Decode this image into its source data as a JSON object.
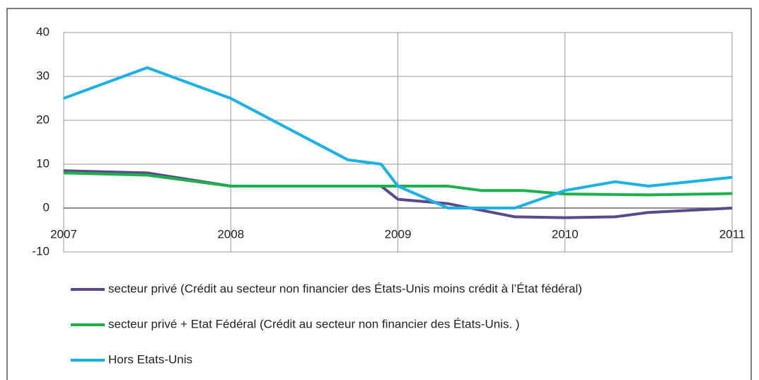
{
  "chart_data": {
    "type": "line",
    "xlim": [
      2007,
      2011
    ],
    "xticks": [
      2007,
      2008,
      2009,
      2010,
      2011
    ],
    "ylim": [
      -10,
      40
    ],
    "yticks": [
      -10,
      0,
      10,
      20,
      30,
      40
    ],
    "grid": true,
    "legend": "bottom",
    "series": [
      {
        "name": "secteur privé (Crédit au secteur non financier des États-Unis moins crédit à l’État fédéral)",
        "color": "#5b4a8b",
        "x": [
          2007,
          2007.5,
          2008,
          2008.9,
          2009,
          2009.3,
          2009.7,
          2010,
          2010.3,
          2010.5,
          2011
        ],
        "values": [
          8.5,
          8,
          5,
          5,
          2,
          1,
          -2,
          -2.2,
          -2,
          -1,
          0
        ]
      },
      {
        "name": "secteur privé + Etat Fédéral (Crédit au secteur non financier des États-Unis. )",
        "color": "#1db14b",
        "x": [
          2007,
          2007.5,
          2008,
          2009.3,
          2009.5,
          2009.75,
          2010,
          2010.5,
          2011
        ],
        "values": [
          8,
          7.5,
          5,
          5,
          4,
          4,
          3.2,
          3,
          3.3
        ]
      },
      {
        "name": "Hors Etats-Unis",
        "color": "#1ab0e8",
        "x": [
          2007,
          2007.5,
          2008,
          2008.7,
          2008.9,
          2009,
          2009.3,
          2009.7,
          2010,
          2010.3,
          2010.5,
          2011
        ],
        "values": [
          25,
          32,
          25,
          11,
          10,
          5,
          0,
          0,
          4,
          6,
          5,
          7
        ]
      }
    ]
  }
}
